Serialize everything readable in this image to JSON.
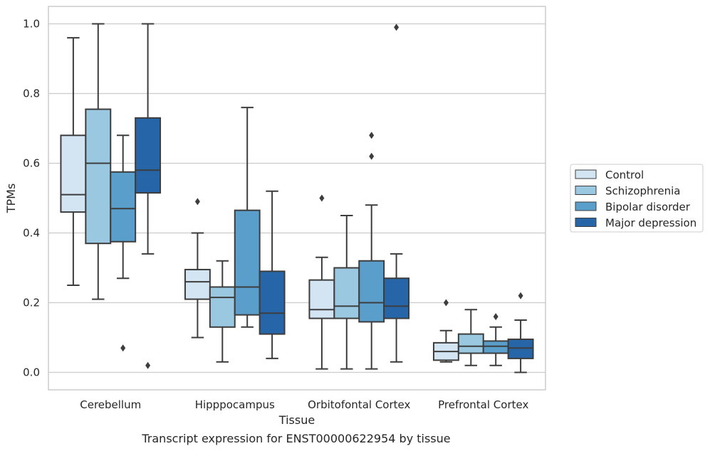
{
  "caption": "Transcript expression for ENST00000622954 by tissue",
  "chart_data": {
    "type": "boxplot",
    "xlabel": "Tissue",
    "ylabel": "TPMs",
    "ylim": [
      -0.05,
      1.05
    ],
    "yticks": [
      0.0,
      0.2,
      0.4,
      0.6,
      0.8,
      1.0
    ],
    "ytick_labels": [
      "0.0",
      "0.2",
      "0.4",
      "0.6",
      "0.8",
      "1.0"
    ],
    "grid": "horizontal",
    "legend_position": "right",
    "categories": [
      "Cerebellum",
      "Hipppocampus",
      "Orbitofontal Cortex",
      "Prefrontal Cortex"
    ],
    "series": [
      {
        "name": "Control",
        "color": "#d3e4f3",
        "boxes": [
          {
            "whislo": 0.25,
            "q1": 0.46,
            "med": 0.51,
            "q3": 0.68,
            "whishi": 0.96,
            "fliers": []
          },
          {
            "whislo": 0.1,
            "q1": 0.21,
            "med": 0.26,
            "q3": 0.295,
            "whishi": 0.4,
            "fliers": [
              0.49
            ]
          },
          {
            "whislo": 0.01,
            "q1": 0.155,
            "med": 0.18,
            "q3": 0.265,
            "whishi": 0.33,
            "fliers": [
              0.5
            ]
          },
          {
            "whislo": 0.03,
            "q1": 0.035,
            "med": 0.06,
            "q3": 0.085,
            "whishi": 0.12,
            "fliers": [
              0.2
            ]
          }
        ]
      },
      {
        "name": "Schizophrenia",
        "color": "#9ac8e0",
        "boxes": [
          {
            "whislo": 0.21,
            "q1": 0.37,
            "med": 0.6,
            "q3": 0.755,
            "whishi": 1.0,
            "fliers": []
          },
          {
            "whislo": 0.03,
            "q1": 0.13,
            "med": 0.215,
            "q3": 0.245,
            "whishi": 0.32,
            "fliers": []
          },
          {
            "whislo": 0.01,
            "q1": 0.155,
            "med": 0.19,
            "q3": 0.3,
            "whishi": 0.45,
            "fliers": []
          },
          {
            "whislo": 0.02,
            "q1": 0.055,
            "med": 0.075,
            "q3": 0.11,
            "whishi": 0.18,
            "fliers": []
          }
        ]
      },
      {
        "name": "Bipolar disorder",
        "color": "#5a9fcc",
        "boxes": [
          {
            "whislo": 0.27,
            "q1": 0.375,
            "med": 0.47,
            "q3": 0.575,
            "whishi": 0.68,
            "fliers": [
              0.07
            ]
          },
          {
            "whislo": 0.13,
            "q1": 0.165,
            "med": 0.245,
            "q3": 0.465,
            "whishi": 0.76,
            "fliers": []
          },
          {
            "whislo": 0.01,
            "q1": 0.145,
            "med": 0.2,
            "q3": 0.32,
            "whishi": 0.48,
            "fliers": [
              0.62,
              0.68
            ]
          },
          {
            "whislo": 0.02,
            "q1": 0.055,
            "med": 0.075,
            "q3": 0.09,
            "whishi": 0.13,
            "fliers": [
              0.16
            ]
          }
        ]
      },
      {
        "name": "Major depression",
        "color": "#2666a8",
        "boxes": [
          {
            "whislo": 0.34,
            "q1": 0.515,
            "med": 0.58,
            "q3": 0.73,
            "whishi": 1.0,
            "fliers": [
              0.02
            ]
          },
          {
            "whislo": 0.04,
            "q1": 0.11,
            "med": 0.17,
            "q3": 0.29,
            "whishi": 0.52,
            "fliers": []
          },
          {
            "whislo": 0.03,
            "q1": 0.155,
            "med": 0.19,
            "q3": 0.27,
            "whishi": 0.34,
            "fliers": [
              0.99
            ]
          },
          {
            "whislo": 0.0,
            "q1": 0.04,
            "med": 0.07,
            "q3": 0.095,
            "whishi": 0.15,
            "fliers": [
              0.22
            ]
          }
        ]
      }
    ]
  }
}
